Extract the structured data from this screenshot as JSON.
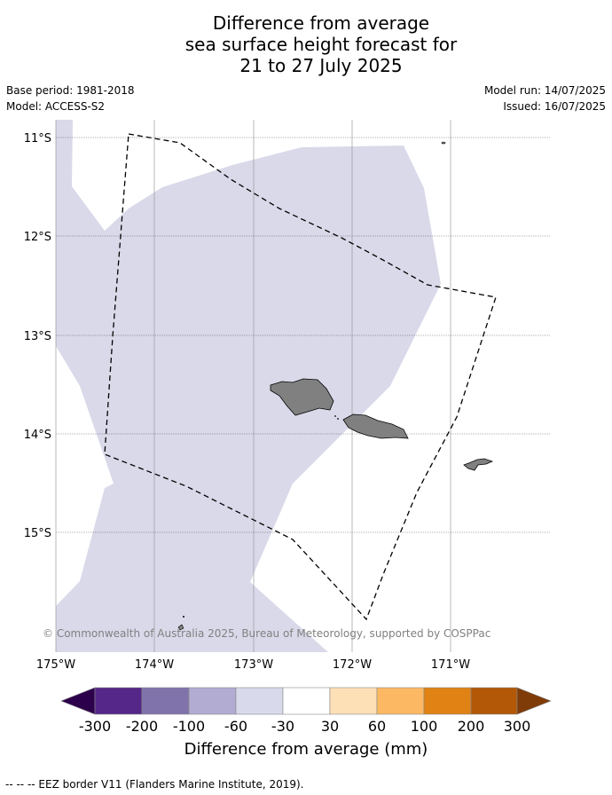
{
  "title": {
    "line1": "Difference from average",
    "line2": "sea surface height forecast for",
    "line3": "21 to 27 July 2025"
  },
  "meta": {
    "base_period": "Base period: 1981-2018",
    "model": "Model: ACCESS-S2",
    "model_run": "Model run: 14/07/2025",
    "issued": "Issued: 16/07/2025"
  },
  "map": {
    "lat_labels": [
      "11°S",
      "12°S",
      "13°S",
      "14°S",
      "15°S"
    ],
    "lon_labels": [
      "175°W",
      "174°W",
      "173°W",
      "172°W",
      "171°W"
    ],
    "copyright": "© Commonwealth of Australia 2025, Bureau of Meteorology, supported by COSPPac",
    "anomaly_fill_color": "#d9d9ea",
    "land_color": "#808080"
  },
  "colorbar": {
    "ticks": [
      "-300",
      "-200",
      "-100",
      "-60",
      "-30",
      "30",
      "60",
      "100",
      "200",
      "300"
    ],
    "label": "Difference from average (mm)",
    "colors": [
      "#2d004b",
      "#542788",
      "#8073ac",
      "#b2abd2",
      "#d8daeb",
      "#ffffff",
      "#fee0b6",
      "#fdb863",
      "#e08214",
      "#b35806",
      "#7f3b08"
    ]
  },
  "footer": {
    "legend": "--  --  -- EEZ border V11 (Flanders Marine Institute, 2019)."
  }
}
